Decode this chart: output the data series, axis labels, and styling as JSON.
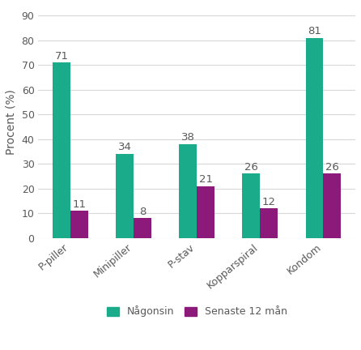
{
  "categories": [
    "P-piller",
    "Minipiller",
    "P-stav",
    "Kopparspiral",
    "Kondom"
  ],
  "nagonsin": [
    71,
    34,
    38,
    26,
    81
  ],
  "senaste_12": [
    11,
    8,
    21,
    12,
    26
  ],
  "color_nagonsin": "#1aab8a",
  "color_senaste": "#8b1a7a",
  "ylabel": "Procent (%)",
  "yticks": [
    0,
    10,
    20,
    30,
    40,
    50,
    60,
    70,
    80,
    90
  ],
  "ylim": [
    0,
    94
  ],
  "bar_width": 0.28,
  "legend_nagonsin": "Någonsin",
  "legend_senaste": "Senaste 12 mån",
  "background_color": "#ffffff",
  "label_fontsize": 9.5,
  "tick_fontsize": 9,
  "legend_fontsize": 9,
  "ylabel_fontsize": 10,
  "grid_color": "#d8d8d8",
  "text_color": "#595959"
}
